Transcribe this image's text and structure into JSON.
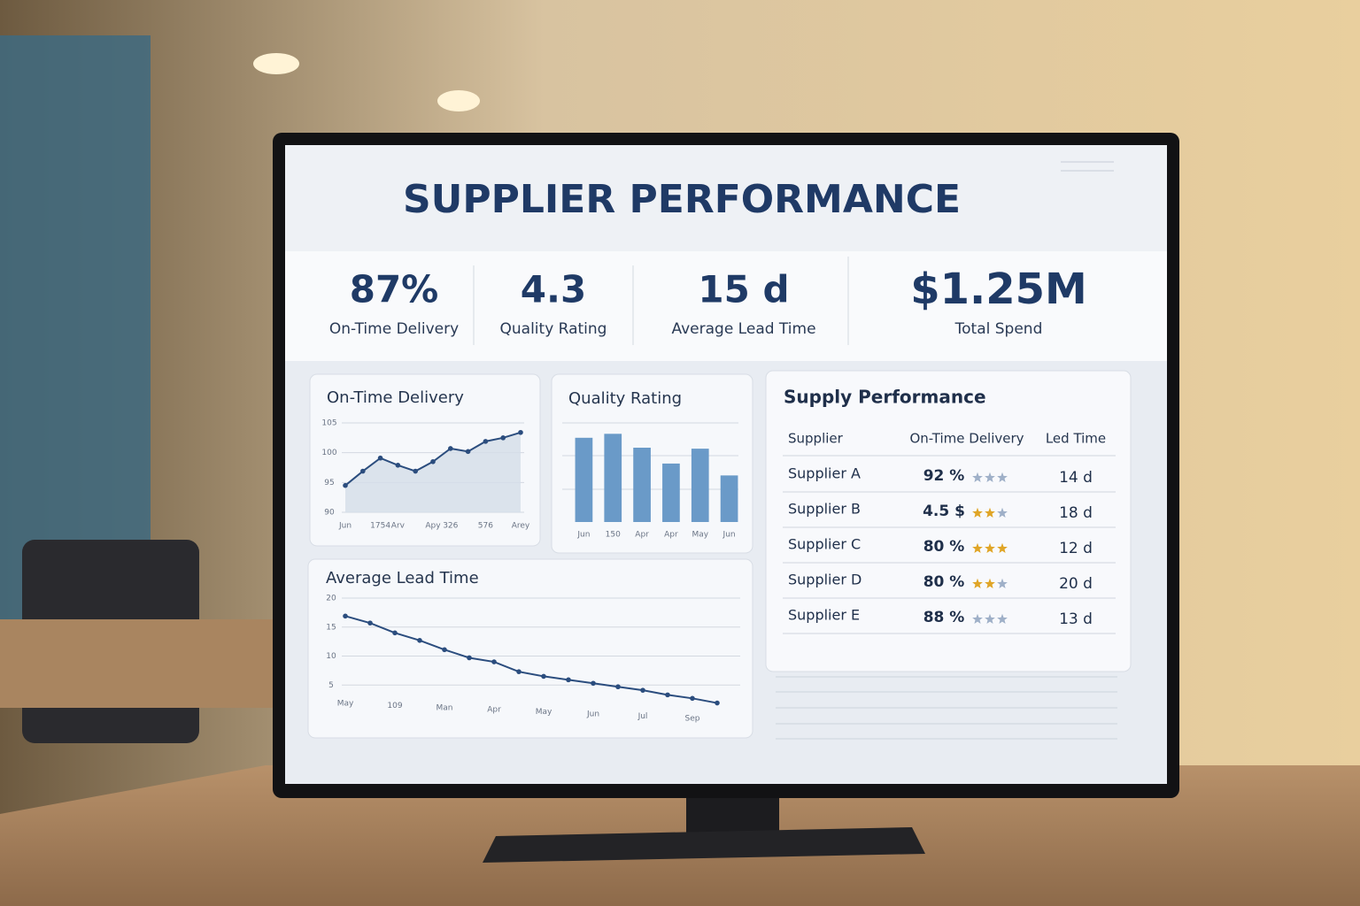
{
  "header": {
    "title": "SUPPLIER PERFORMANCE"
  },
  "kpis": [
    {
      "value": "87%",
      "label": "On-Time Delivery"
    },
    {
      "value": "4.3",
      "label": "Quality Rating"
    },
    {
      "value": "15 d",
      "label": "Average Lead Time"
    },
    {
      "value": "$1.25M",
      "label": "Total Spend"
    }
  ],
  "chart_data": [
    {
      "type": "line",
      "title": "On-Time Delivery",
      "color": "#2b4d7e",
      "area": true,
      "grid": true,
      "categories": [
        "Jun",
        null,
        "1754",
        "Arv",
        null,
        "Apy",
        "326",
        null,
        "576",
        null,
        "Arey"
      ],
      "values": [
        94.5,
        96.9,
        99.1,
        97.9,
        96.9,
        98.5,
        100.7,
        100.2,
        101.9,
        102.5,
        103.4
      ],
      "ylim": [
        90,
        105
      ],
      "yticks": [
        90,
        95,
        100,
        105
      ]
    },
    {
      "type": "bar",
      "title": "Quality Rating",
      "color": "#6a9ac8",
      "grid": true,
      "categories": [
        "Jun",
        "150",
        "Apr",
        "Apr",
        "May",
        "Jun"
      ],
      "values": [
        85,
        89,
        75,
        59,
        74,
        47
      ],
      "ylim": [
        0,
        100
      ]
    },
    {
      "type": "line",
      "title": "Average Lead Time",
      "color": "#2b4d7e",
      "grid": true,
      "categories": [
        "May",
        null,
        "109",
        null,
        "Man",
        null,
        "Apr",
        null,
        "May",
        null,
        "Jun",
        null,
        "Jul",
        null,
        "Sep",
        null
      ],
      "values": [
        16.9,
        15.7,
        14.0,
        12.7,
        11.1,
        9.7,
        9.0,
        7.3,
        6.5,
        5.9,
        5.3,
        4.7,
        4.1,
        3.3,
        2.7,
        1.9
      ],
      "ylim": [
        0,
        20
      ],
      "yticks": [
        5,
        10,
        15,
        20
      ]
    }
  ],
  "table": {
    "title": "Supply Performance",
    "columns": [
      "Supplier",
      "On-Time Delivery",
      "Led Time"
    ],
    "rows": [
      {
        "supplier": "Supplier A",
        "on_time": "92 %",
        "stars": 0,
        "lead": "14 d"
      },
      {
        "supplier": "Supplier B",
        "on_time": "4.5 $",
        "stars": 2,
        "lead": "18 d"
      },
      {
        "supplier": "Supplier C",
        "on_time": "80 %",
        "stars": 3,
        "lead": "12 d"
      },
      {
        "supplier": "Supplier D",
        "on_time": "80 %",
        "stars": 2,
        "lead": "20 d"
      },
      {
        "supplier": "Supplier E",
        "on_time": "88 %",
        "stars": 0,
        "lead": "13 d"
      }
    ]
  }
}
